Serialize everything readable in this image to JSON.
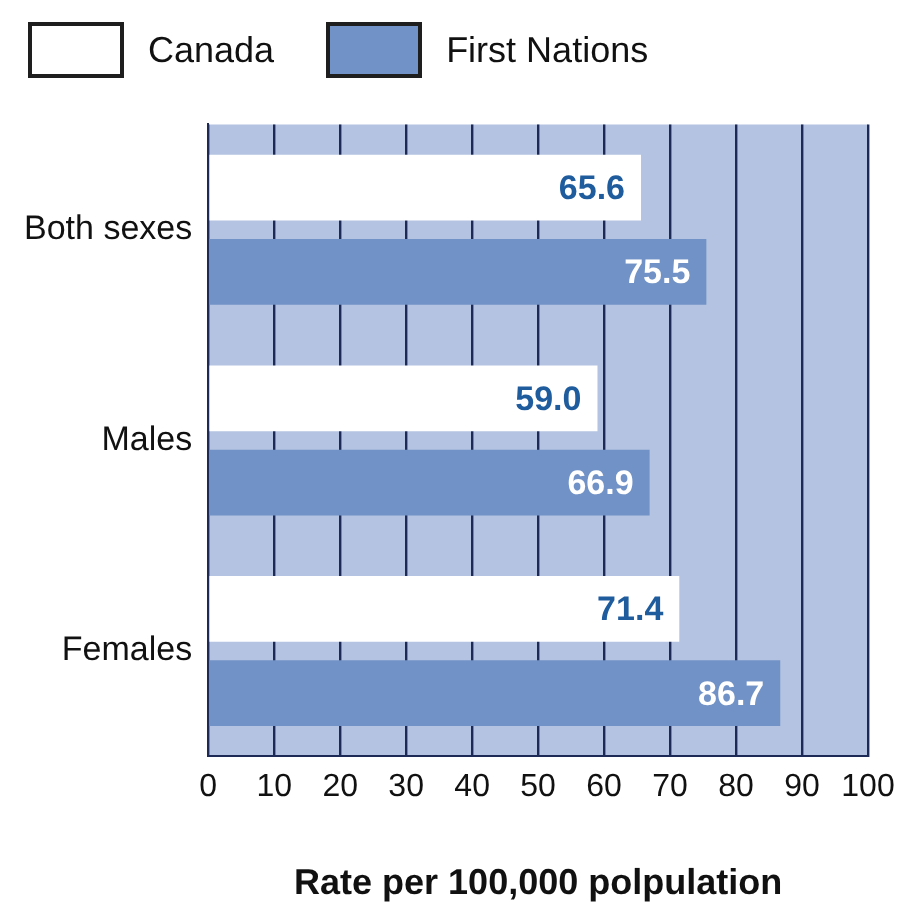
{
  "chart_data": {
    "type": "bar",
    "orientation": "horizontal",
    "xlabel": "Rate per 100,000 polpulation",
    "categories": [
      "Both sexes",
      "Males",
      "Females"
    ],
    "series": [
      {
        "name": "Canada",
        "color": "#ffffff",
        "values": [
          65.6,
          59.0,
          71.4
        ],
        "value_labels": [
          "65.6",
          "59.0",
          "71.4"
        ]
      },
      {
        "name": "First Nations",
        "color": "#7192c6",
        "values": [
          75.5,
          66.9,
          86.7
        ],
        "value_labels": [
          "75.5",
          "66.9",
          "86.7"
        ]
      }
    ],
    "xlim": [
      0,
      100
    ],
    "xticks": [
      0,
      10,
      20,
      30,
      40,
      50,
      60,
      70,
      80,
      90,
      100
    ],
    "grid": "x",
    "legend": "top"
  }
}
